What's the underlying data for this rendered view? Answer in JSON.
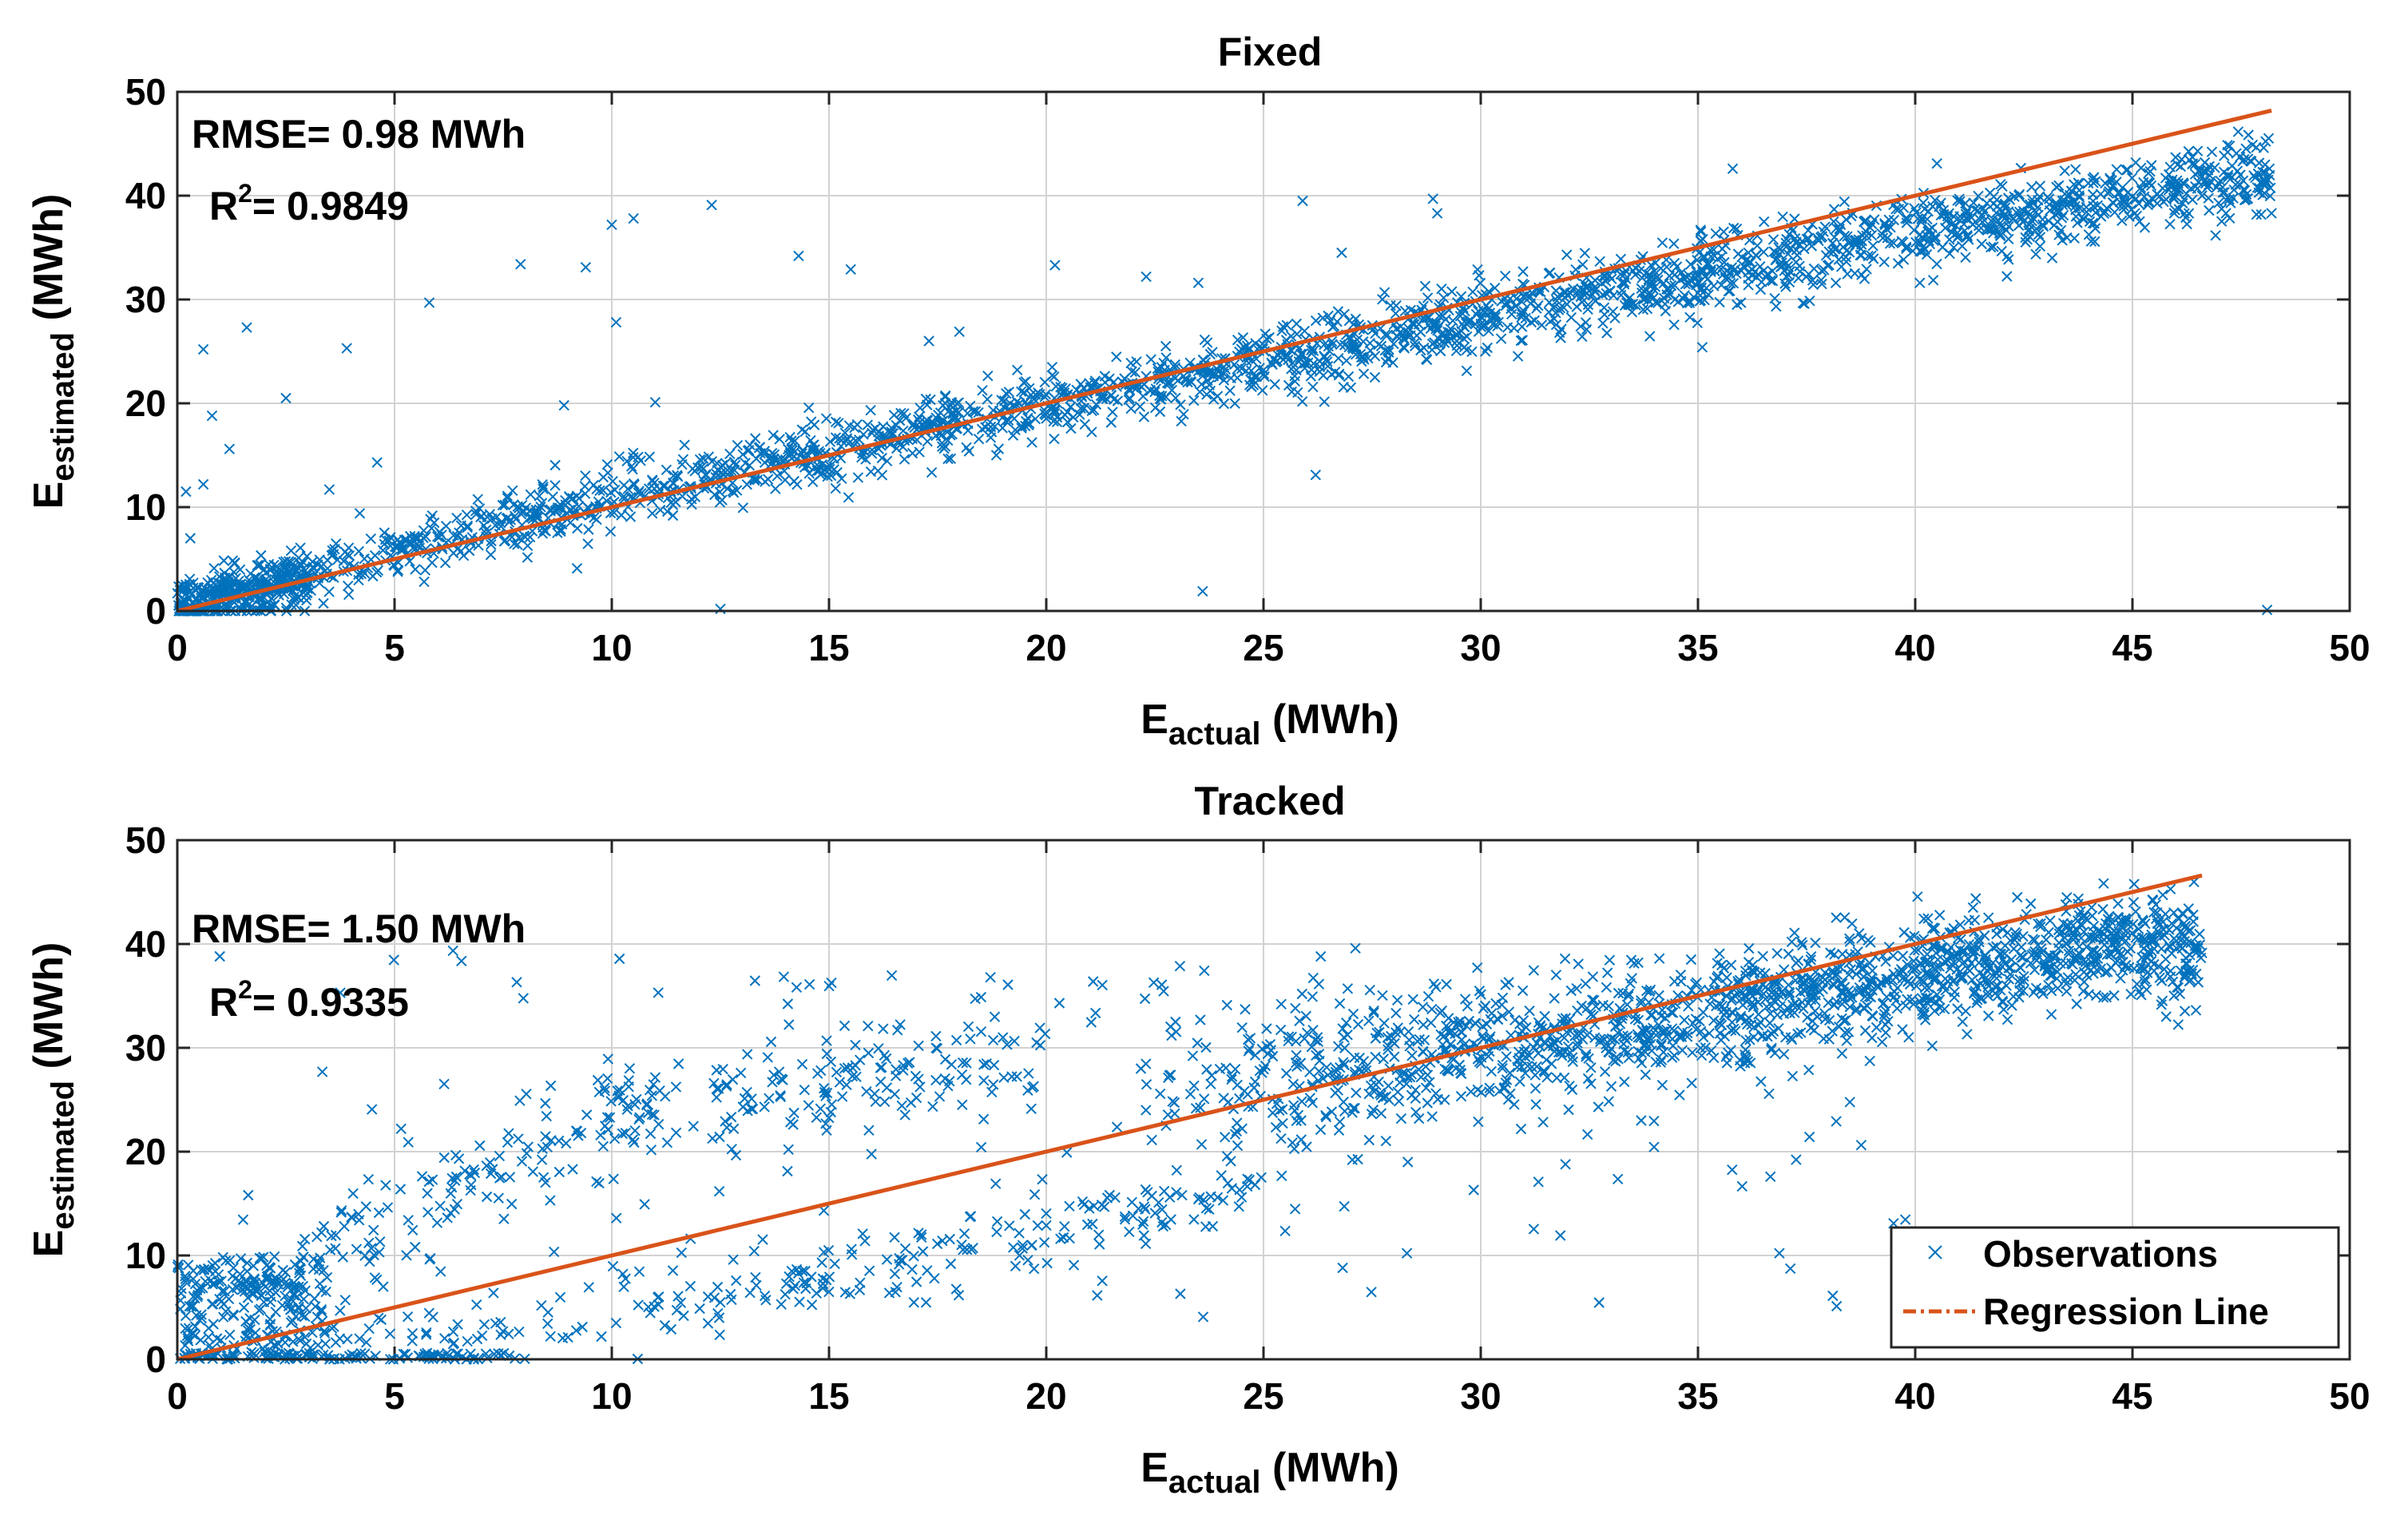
{
  "chart_data": [
    {
      "type": "scatter",
      "title": "Fixed",
      "xlabel": {
        "main": "E",
        "sub": "actual",
        "unit": " (MWh)"
      },
      "ylabel": {
        "main": "E",
        "sub": "estimated",
        "unit": " (MWh)"
      },
      "xlim": [
        0,
        50
      ],
      "ylim": [
        0,
        50
      ],
      "xticks": [
        0,
        5,
        10,
        15,
        20,
        25,
        30,
        35,
        40,
        45,
        50
      ],
      "yticks": [
        0,
        10,
        20,
        30,
        40,
        50
      ],
      "grid": true,
      "annotations": {
        "rmse": "RMSE= 0.98 MWh",
        "r2_prefix": "R",
        "r2_sup": "2",
        "r2_value": "= 0.9849"
      },
      "regression_line": {
        "x": [
          0,
          48.2
        ],
        "y": [
          0,
          48.2
        ]
      },
      "observations_model": {
        "n": 2600,
        "x_max": 48.2,
        "main_band": [
          [
            0,
            0.3,
            1.6
          ],
          [
            10,
            11.0,
            2.0
          ],
          [
            20,
            19.8,
            2.0
          ],
          [
            30,
            28.2,
            2.3
          ],
          [
            40,
            36.5,
            2.4
          ],
          [
            48,
            42.0,
            2.5
          ]
        ]
      },
      "outliers": [
        [
          0.6,
          25.2
        ],
        [
          0.8,
          18.8
        ],
        [
          1.2,
          15.6
        ],
        [
          1.6,
          27.3
        ],
        [
          2.5,
          20.5
        ],
        [
          3.9,
          25.3
        ],
        [
          4.6,
          14.3
        ],
        [
          5.8,
          29.7
        ],
        [
          7.9,
          33.4
        ],
        [
          8.9,
          19.8
        ],
        [
          9.4,
          33.1
        ],
        [
          10.0,
          37.2
        ],
        [
          10.1,
          27.8
        ],
        [
          10.5,
          37.8
        ],
        [
          11.0,
          20.1
        ],
        [
          12.3,
          39.1
        ],
        [
          14.3,
          34.2
        ],
        [
          15.5,
          32.9
        ],
        [
          17.3,
          26.0
        ],
        [
          18.0,
          26.9
        ],
        [
          20.2,
          33.3
        ],
        [
          22.3,
          32.2
        ],
        [
          23.5,
          31.6
        ],
        [
          25.9,
          39.5
        ],
        [
          26.2,
          13.1
        ],
        [
          26.8,
          34.5
        ],
        [
          28.9,
          39.7
        ],
        [
          29.0,
          38.3
        ],
        [
          35.1,
          25.4
        ],
        [
          35.8,
          42.6
        ],
        [
          40.5,
          43.1
        ],
        [
          46.5,
          44.3
        ],
        [
          48.2,
          38.3
        ],
        [
          23.6,
          1.9
        ],
        [
          9.2,
          4.1
        ],
        [
          12.5,
          0.2
        ],
        [
          48.1,
          0.1
        ],
        [
          0.2,
          11.5
        ],
        [
          0.3,
          7.0
        ],
        [
          0.6,
          12.2
        ],
        [
          3.5,
          11.7
        ],
        [
          4.2,
          9.4
        ]
      ],
      "seed": 7
    },
    {
      "type": "scatter",
      "title": "Tracked",
      "xlabel": {
        "main": "E",
        "sub": "actual",
        "unit": " (MWh)"
      },
      "ylabel": {
        "main": "E",
        "sub": "estimated",
        "unit": " (MWh)"
      },
      "xlim": [
        0,
        50
      ],
      "ylim": [
        0,
        50
      ],
      "xticks": [
        0,
        5,
        10,
        15,
        20,
        25,
        30,
        35,
        40,
        45,
        50
      ],
      "yticks": [
        0,
        10,
        20,
        30,
        40,
        50
      ],
      "grid": true,
      "annotations": {
        "rmse": "RMSE= 1.50 MWh",
        "r2_prefix": "R",
        "r2_sup": "2",
        "r2_value": "= 0.9335"
      },
      "regression_line": {
        "x": [
          0,
          46.6
        ],
        "y": [
          0,
          46.6
        ]
      },
      "observations_model": {
        "n": 2600,
        "x_max": 46.6,
        "main_band": [
          [
            25,
            27.0,
            3.5
          ],
          [
            32,
            31.0,
            3.0
          ],
          [
            38,
            35.5,
            2.7
          ],
          [
            44,
            39.5,
            2.5
          ]
        ]
      },
      "legend": {
        "placement": "bottom-right",
        "entries": [
          "Observations",
          "Regression Line"
        ]
      },
      "seed": 13
    }
  ]
}
